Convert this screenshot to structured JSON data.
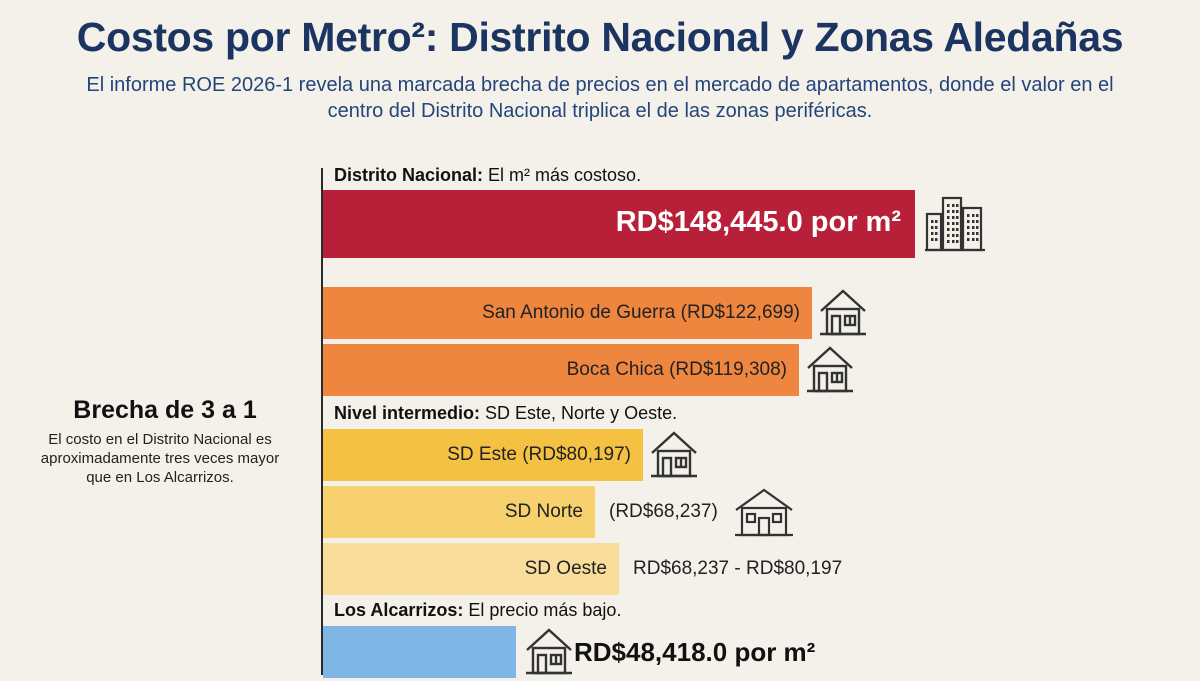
{
  "header": {
    "title": "Costos por Metro²: Distrito Nacional y Zonas Aledañas",
    "subtitle": "El informe ROE 2026-1 revela una marcada brecha de precios en el mercado de apartamentos, donde el valor en el centro del Distrito Nacional triplica el de las zonas periféricas."
  },
  "sections": {
    "distrito": {
      "bold": "Distrito Nacional:",
      "text": " El m² más costoso."
    },
    "intermedio": {
      "bold": "Nivel intermedio:",
      "text": " SD Este, Norte y Oeste."
    },
    "alcarrizos": {
      "bold": "Los Alcarrizos:",
      "text": " El precio más bajo."
    }
  },
  "side_note": {
    "title": "Brecha de 3 a 1",
    "text": "El costo en el Distrito Nacional es aproximadamente tres veces mayor que en Los Alcarrizos."
  },
  "chart_data": {
    "type": "bar",
    "orientation": "horizontal",
    "unit": "RD$ por m²",
    "title": "Costos por Metro²: Distrito Nacional y Zonas Aledañas",
    "categories": [
      "Distrito Nacional",
      "San Antonio de Guerra",
      "Boca Chica",
      "SD Este",
      "SD Norte",
      "SD Oeste",
      "Los Alcarrizos"
    ],
    "values": [
      148445.0,
      122699,
      119308,
      80197,
      68237,
      74217,
      48418.0
    ],
    "labels": [
      "RD$148,445.0 por m²",
      "San Antonio de Guerra (RD$122,699)",
      "Boca Chica (RD$119,308)",
      "SD Este (RD$80,197)",
      "SD Norte",
      "SD Oeste",
      "RD$48,418.0 por m²"
    ],
    "value_labels": [
      "",
      "",
      "",
      "",
      "(RD$68,237)",
      "RD$68,237 - RD$80,197",
      ""
    ],
    "colors": [
      "#b8203a",
      "#ee8640",
      "#ee8640",
      "#f4c143",
      "#f6d16e",
      "#f8de9a",
      "#7fb6e6"
    ],
    "icons": [
      "city-buildings-icon",
      "house-icon",
      "house-icon",
      "house-icon",
      "large-house-icon",
      "",
      "house-icon"
    ]
  }
}
